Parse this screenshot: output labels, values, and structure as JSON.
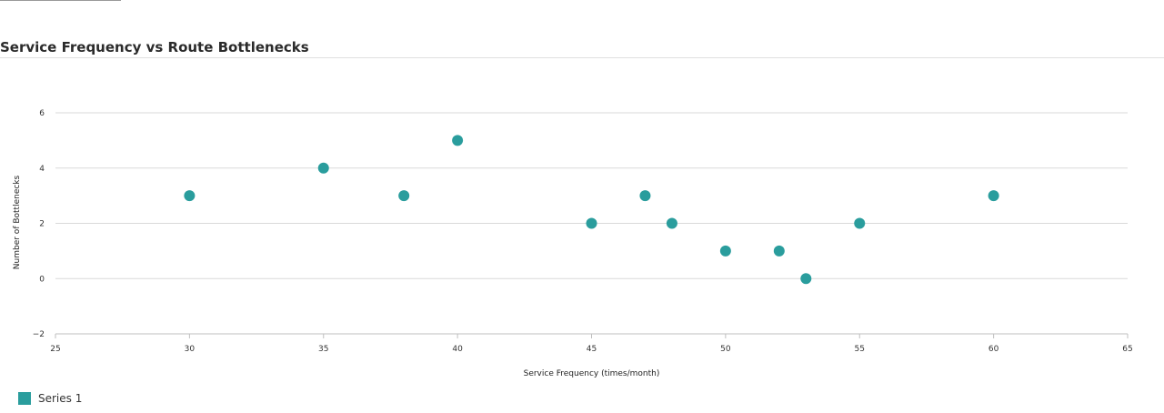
{
  "chart_data": {
    "type": "scatter",
    "title": "Service Frequency vs Route Bottlenecks",
    "xlabel": "Service Frequency (times/month)",
    "ylabel": "Number of Bottlenecks",
    "xlim": [
      25,
      65
    ],
    "ylim": [
      -2,
      6
    ],
    "xticks": [
      25,
      30,
      35,
      40,
      45,
      50,
      55,
      60,
      65
    ],
    "yticks": [
      -2,
      0,
      2,
      4,
      6
    ],
    "ytick_labels": [
      "−2",
      "0",
      "2",
      "4",
      "6"
    ],
    "grid": "horizontal",
    "legend_position": "bottom-left",
    "series": [
      {
        "name": "Series 1",
        "color": "#2a9d9d",
        "points": [
          {
            "x": 30,
            "y": 3
          },
          {
            "x": 35,
            "y": 4
          },
          {
            "x": 38,
            "y": 3
          },
          {
            "x": 40,
            "y": 5
          },
          {
            "x": 45,
            "y": 2
          },
          {
            "x": 47,
            "y": 3
          },
          {
            "x": 48,
            "y": 2
          },
          {
            "x": 50,
            "y": 1
          },
          {
            "x": 52,
            "y": 1
          },
          {
            "x": 53,
            "y": 0
          },
          {
            "x": 55,
            "y": 2
          },
          {
            "x": 60,
            "y": 3
          }
        ]
      }
    ]
  }
}
